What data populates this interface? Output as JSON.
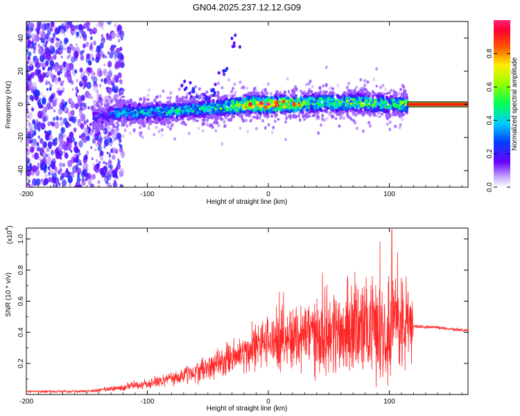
{
  "title": "GN04.2025.237.12.12.G09",
  "colorbar": {
    "label": "Normalized spectral amplitude",
    "ticks": [
      "0.0",
      "0.2",
      "0.4",
      "0.6",
      "0.8"
    ],
    "tick_values": [
      0.0,
      0.2,
      0.4,
      0.6,
      0.8
    ],
    "range": [
      0,
      1
    ]
  },
  "chart_data": [
    {
      "type": "heatmap",
      "name": "spectrogram",
      "title": "GN04.2025.237.12.12.G09",
      "xlabel": "Height of straight line (km)",
      "ylabel": "Frequency (Hz)",
      "xlim": [
        -200,
        165
      ],
      "ylim": [
        -50,
        50
      ],
      "xticks": [
        "-200",
        "-100",
        "0",
        "100"
      ],
      "xtick_values": [
        -200,
        -100,
        0,
        100
      ],
      "yticks": [
        "-40",
        "-20",
        "0",
        "20",
        "40"
      ],
      "ytick_values": [
        -40,
        -20,
        0,
        20,
        40
      ],
      "ridge": {
        "description_points_x": [
          -145,
          -120,
          -100,
          -80,
          -60,
          -40,
          -20,
          0,
          20,
          40,
          60,
          80,
          100,
          115
        ],
        "center_freq": [
          -8,
          -5,
          -5,
          -4,
          -3,
          -2,
          0,
          0,
          0,
          1,
          1,
          1,
          0,
          0
        ],
        "peak_amplitude": [
          0.2,
          0.4,
          0.45,
          0.45,
          0.45,
          0.5,
          0.85,
          0.9,
          0.9,
          0.6,
          0.6,
          0.65,
          0.6,
          0.6
        ]
      },
      "constant_tail": {
        "x_start": 115,
        "x_end": 165,
        "freq": 0,
        "amplitude": 0.9
      }
    },
    {
      "type": "line",
      "name": "snr",
      "xlabel": "Height of straight line (km)",
      "ylabel": "SNR (10 * v/v)",
      "yscale_label": "(x10",
      "yscale_exp": "4",
      "xlim": [
        -200,
        165
      ],
      "ylim": [
        0,
        1.07
      ],
      "xticks": [
        "-200",
        "-100",
        "0",
        "100"
      ],
      "xtick_values": [
        -200,
        -100,
        0,
        100
      ],
      "yticks": [
        "0.2",
        "0.4",
        "0.6",
        "0.8",
        "1.0"
      ],
      "ytick_values": [
        0.2,
        0.4,
        0.6,
        0.8,
        1.0
      ],
      "envelope_x": [
        -200,
        -150,
        -125,
        -100,
        -75,
        -50,
        -25,
        0,
        25,
        50,
        75,
        100,
        118,
        120,
        140,
        165
      ],
      "envelope_mean": [
        0.02,
        0.02,
        0.04,
        0.07,
        0.11,
        0.17,
        0.25,
        0.34,
        0.38,
        0.4,
        0.42,
        0.44,
        0.45,
        0.44,
        0.43,
        0.41
      ],
      "envelope_spread": [
        0.005,
        0.01,
        0.02,
        0.03,
        0.05,
        0.08,
        0.12,
        0.16,
        0.22,
        0.26,
        0.3,
        0.32,
        0.3,
        0.01,
        0.01,
        0.01
      ],
      "peak": {
        "x": 102,
        "y": 1.06
      },
      "color": "#ff0000"
    }
  ]
}
